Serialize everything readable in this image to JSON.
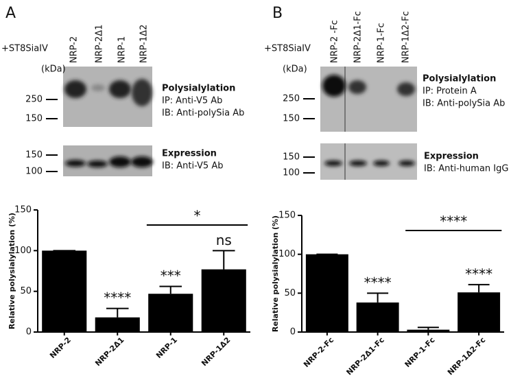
{
  "panels": [
    {
      "label": "A",
      "treatment": "+ST8SiaIV",
      "lanes": [
        "NRP-2",
        "NRP-2Δ1",
        "NRP-1",
        "NRP-1Δ2"
      ],
      "unit": "(kDa)",
      "blot1": {
        "markers": [
          250,
          150
        ],
        "lines": [
          "Polysialylation",
          "IP: Anti-V5 Ab",
          "IB: Anti-polySia Ab"
        ]
      },
      "blot2": {
        "markers": [
          150,
          100
        ],
        "lines": [
          "Expression",
          "IB: Anti-V5 Ab"
        ]
      }
    },
    {
      "label": "B",
      "treatment": "+ST8SiaIV",
      "lanes": [
        "NRP-2 -Fc",
        "NRP-2Δ1-Fc",
        "NRP-1-Fc",
        "NRP-1Δ2-Fc"
      ],
      "unit": "(kDa)",
      "blot1": {
        "markers": [
          250,
          150
        ],
        "lines": [
          "Polysialylation",
          "IP: Protein A",
          "IB: Anti-polySia Ab"
        ]
      },
      "blot2": {
        "markers": [
          150,
          100
        ],
        "lines": [
          "Expression",
          "IB: Anti-human IgG"
        ]
      }
    }
  ],
  "chart_data": [
    {
      "type": "bar",
      "y_label": "Relative polysialylation (%)",
      "categories": [
        "NRP-2",
        "NRP-2Δ1",
        "NRP-1",
        "NRP-1Δ2"
      ],
      "values": [
        100,
        18,
        47,
        77
      ],
      "errors": [
        0,
        11,
        9,
        23
      ],
      "color": "#000000",
      "annotations": [
        null,
        "****",
        "***",
        "ns"
      ],
      "bracket": {
        "label": "*",
        "span": [
          "NRP-1",
          "NRP-1Δ2"
        ]
      },
      "ylim": [
        0,
        150
      ],
      "yticks": [
        0,
        50,
        100,
        150
      ]
    },
    {
      "type": "bar",
      "y_label": "Relative polysialylation (%)",
      "categories": [
        "NRP-2-Fc",
        "NRP-2Δ1-Fc",
        "NRP-1-Fc",
        "NRP-1Δ2-Fc"
      ],
      "values": [
        100,
        38,
        3,
        51
      ],
      "errors": [
        0,
        12,
        3,
        10
      ],
      "color": "#000000",
      "annotations": [
        null,
        "****",
        null,
        "****"
      ],
      "bracket": {
        "label": "****",
        "span": [
          "NRP-1-Fc",
          "NRP-1Δ2-Fc"
        ]
      },
      "ylim": [
        0,
        150
      ],
      "yticks": [
        0,
        50,
        100,
        150
      ]
    }
  ]
}
